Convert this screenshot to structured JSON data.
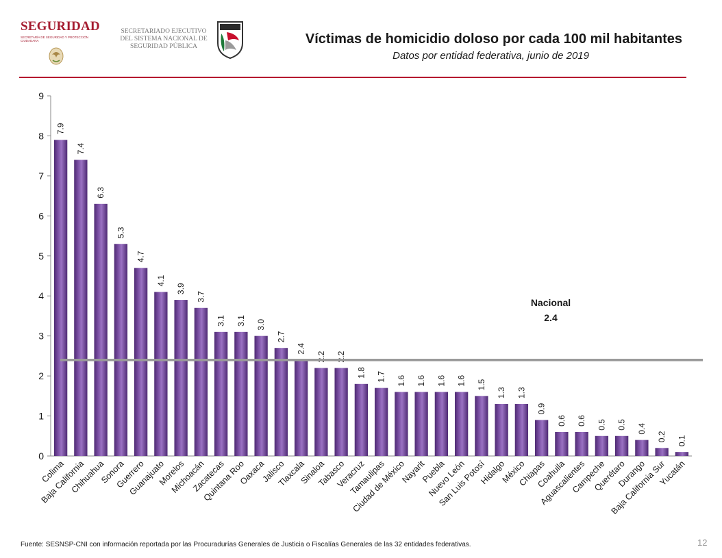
{
  "header": {
    "brand": "SEGURIDAD",
    "brand_sub": "Secretaría de Seguridad y Protección Ciudadana",
    "secretariado": "Secretariado Ejecutivo del Sistema Nacional de Seguridad Pública",
    "title": "Víctimas de homicidio doloso por cada 100 mil habitantes",
    "subtitle": "Datos por entidad federativa, junio de 2019"
  },
  "colors": {
    "brand": "#a51c30",
    "rule": "#b5162f",
    "bar": "#7a4fa3",
    "bar_dark": "#4e2a73",
    "reference_line": "#9a9a9a"
  },
  "chart_data": {
    "type": "bar",
    "title": "Víctimas de homicidio doloso por cada 100 mil habitantes",
    "subtitle": "Datos por entidad federativa, junio de 2019",
    "categories": [
      "Colima",
      "Baja California",
      "Chihuahua",
      "Sonora",
      "Guerrero",
      "Guanajuato",
      "Morelos",
      "Michoacán",
      "Zacatecas",
      "Quintana Roo",
      "Oaxaca",
      "Jalisco",
      "Tlaxcala",
      "Sinaloa",
      "Tabasco",
      "Veracruz",
      "Tamaulipas",
      "Ciudad de México",
      "Nayarit",
      "Puebla",
      "Nuevo León",
      "San Luis Potosí",
      "Hidalgo",
      "México",
      "Chiapas",
      "Coahuila",
      "Aguascalientes",
      "Campeche",
      "Querétaro",
      "Durango",
      "Baja California Sur",
      "Yucatán"
    ],
    "values": [
      7.9,
      7.4,
      6.3,
      5.3,
      4.7,
      4.1,
      3.9,
      3.7,
      3.1,
      3.1,
      3.0,
      2.7,
      2.4,
      2.2,
      2.2,
      1.8,
      1.7,
      1.6,
      1.6,
      1.6,
      1.6,
      1.5,
      1.3,
      1.3,
      0.9,
      0.6,
      0.6,
      0.5,
      0.5,
      0.4,
      0.2,
      0.1
    ],
    "value_labels": [
      "7.9",
      "7.4",
      "6.3",
      "5.3",
      "4.7",
      "4.1",
      "3.9",
      "3.7",
      "3.1",
      "3.1",
      "3.0",
      "2.7",
      "2.4",
      "2.2",
      "2.2",
      "1.8",
      "1.7",
      "1.6",
      "1.6",
      "1.6",
      "1.6",
      "1.5",
      "1.3",
      "1.3",
      "0.9",
      "0.6",
      "0.6",
      "0.5",
      "0.5",
      "0.4",
      "0.2",
      "0.1"
    ],
    "yticks": [
      "0",
      "1",
      "2",
      "3",
      "4",
      "5",
      "6",
      "7",
      "8",
      "9"
    ],
    "ylim": [
      0,
      9
    ],
    "xlabel": "",
    "ylabel": "",
    "grid": false,
    "reference_line": {
      "label": "Nacional",
      "value_label": "2.4",
      "value": 2.4
    }
  },
  "footer": {
    "source": "Fuente: SESNSP-CNI con información reportada por las Procuradurías Generales de Justicia o Fiscalías Generales de las 32 entidades federativas.",
    "page_number": "12"
  }
}
